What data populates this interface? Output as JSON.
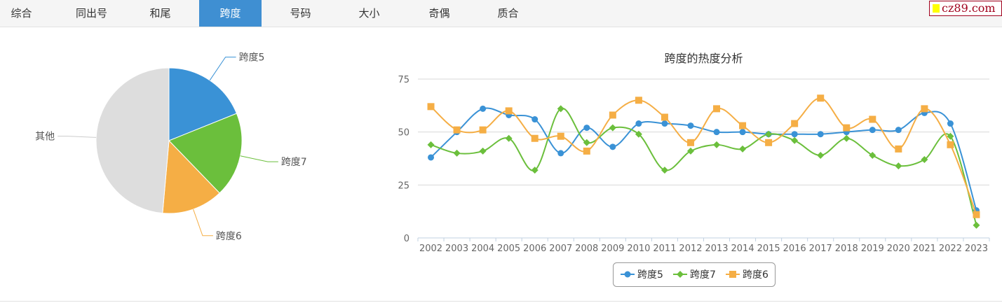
{
  "tabs": [
    {
      "label": "综合"
    },
    {
      "label": "同出号"
    },
    {
      "label": "和尾"
    },
    {
      "label": "跨度",
      "active": true
    },
    {
      "label": "号码"
    },
    {
      "label": "大小"
    },
    {
      "label": "奇偶"
    },
    {
      "label": "质合"
    }
  ],
  "logo": "cz89.com",
  "chart_data": [
    {
      "type": "pie",
      "slices": [
        {
          "label": "跨度5",
          "value": 18.9,
          "color": "#3a92d6"
        },
        {
          "label": "跨度7",
          "value": 18.9,
          "color": "#6bbf3c"
        },
        {
          "label": "跨度6",
          "value": 13.6,
          "color": "#f5ae45"
        },
        {
          "label": "其他",
          "value": 48.6,
          "color": "#dddddd"
        }
      ]
    },
    {
      "type": "line",
      "title": "跨度的热度分析",
      "ylim": [
        0,
        75
      ],
      "yticks": [
        0,
        25,
        50,
        75
      ],
      "grid": true,
      "legend": "bottom",
      "categories": [
        "2002",
        "2003",
        "2004",
        "2005",
        "2006",
        "2007",
        "2008",
        "2009",
        "2010",
        "2011",
        "2012",
        "2013",
        "2014",
        "2015",
        "2016",
        "2017",
        "2018",
        "2019",
        "2020",
        "2021",
        "2022",
        "2023"
      ],
      "series": [
        {
          "name": "跨度5",
          "color": "#3a92d6",
          "marker": "circle",
          "values": [
            38,
            50,
            61,
            58,
            56,
            40,
            52,
            43,
            54,
            54,
            53,
            50,
            50,
            49,
            49,
            49,
            50,
            51,
            51,
            59,
            54,
            13
          ]
        },
        {
          "name": "跨度7",
          "color": "#6bbf3c",
          "marker": "diamond",
          "values": [
            44,
            40,
            41,
            47,
            32,
            61,
            45,
            52,
            49,
            32,
            41,
            44,
            42,
            49,
            46,
            39,
            47,
            39,
            34,
            37,
            48,
            6
          ]
        },
        {
          "name": "跨度6",
          "color": "#f5ae45",
          "marker": "square",
          "values": [
            62,
            51,
            51,
            60,
            47,
            48,
            41,
            58,
            65,
            57,
            45,
            61,
            53,
            45,
            54,
            66,
            52,
            56,
            42,
            61,
            44,
            11
          ]
        }
      ]
    }
  ]
}
